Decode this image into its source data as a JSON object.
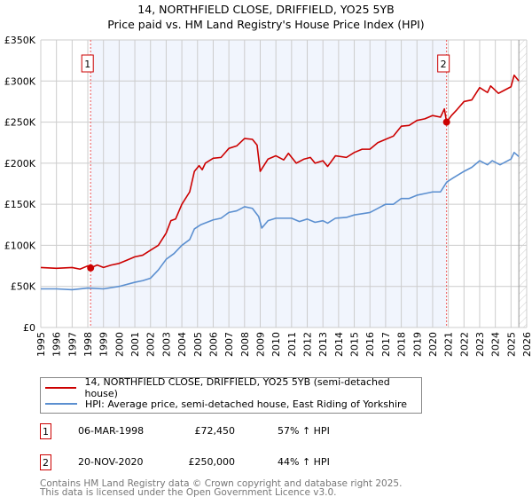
{
  "chart_data": {
    "type": "line",
    "title": "14, NORTHFIELD CLOSE, DRIFFIELD, YO25 5YB",
    "subtitle": "Price paid vs. HM Land Registry's House Price Index (HPI)",
    "xlim": [
      1995,
      2026
    ],
    "ylim": [
      0,
      350000
    ],
    "yticks": [
      {
        "v": 0,
        "label": "£0"
      },
      {
        "v": 50000,
        "label": "£50K"
      },
      {
        "v": 100000,
        "label": "£100K"
      },
      {
        "v": 150000,
        "label": "£150K"
      },
      {
        "v": 200000,
        "label": "£200K"
      },
      {
        "v": 250000,
        "label": "£250K"
      },
      {
        "v": 300000,
        "label": "£300K"
      },
      {
        "v": 350000,
        "label": "£350K"
      }
    ],
    "xticks": [
      "1995",
      "1996",
      "1997",
      "1998",
      "1999",
      "2000",
      "2001",
      "2002",
      "2003",
      "2004",
      "2005",
      "2006",
      "2007",
      "2008",
      "2009",
      "2010",
      "2011",
      "2012",
      "2013",
      "2014",
      "2015",
      "2016",
      "2017",
      "2018",
      "2019",
      "2020",
      "2021",
      "2022",
      "2023",
      "2024",
      "2025",
      "2026"
    ],
    "grid": true,
    "shaded_range": [
      1998.18,
      2020.89
    ],
    "forecast_start": 2025.5,
    "series": [
      {
        "name": "14, NORTHFIELD CLOSE, DRIFFIELD, YO25 5YB (semi-detached house)",
        "color": "#cc0000",
        "x": [
          1995,
          1996,
          1997,
          1997.5,
          1998,
          1998.18,
          1998.6,
          1999,
          1999.5,
          2000,
          2000.5,
          2001,
          2001.5,
          2002,
          2002.5,
          2003,
          2003.3,
          2003.6,
          2004,
          2004.5,
          2004.8,
          2005.1,
          2005.3,
          2005.5,
          2006,
          2006.5,
          2007,
          2007.5,
          2008,
          2008.5,
          2008.8,
          2009,
          2009.5,
          2010,
          2010.5,
          2010.8,
          2011.3,
          2011.8,
          2012.2,
          2012.5,
          2013,
          2013.3,
          2013.8,
          2014.5,
          2015,
          2015.5,
          2016,
          2016.5,
          2017,
          2017.5,
          2018,
          2018.5,
          2019,
          2019.5,
          2020,
          2020.5,
          2020.75,
          2020.89,
          2021.2,
          2021.5,
          2022,
          2022.5,
          2023,
          2023.5,
          2023.7,
          2024.2,
          2024.5,
          2025,
          2025.2,
          2025.5
        ],
        "y": [
          73000,
          72000,
          73000,
          71000,
          75000,
          72450,
          76000,
          73000,
          76000,
          78000,
          82000,
          86000,
          88000,
          94000,
          100000,
          115000,
          130000,
          132000,
          150000,
          165000,
          190000,
          197000,
          192000,
          200000,
          206000,
          207000,
          218000,
          221000,
          230000,
          229000,
          222000,
          190000,
          205000,
          209000,
          204000,
          212000,
          200000,
          205000,
          207000,
          200000,
          203000,
          196000,
          209000,
          207000,
          213000,
          217000,
          217000,
          225000,
          229000,
          233000,
          245000,
          246000,
          252000,
          254000,
          258000,
          256000,
          266000,
          250000,
          258000,
          264000,
          275000,
          277000,
          292000,
          286000,
          294000,
          285000,
          288000,
          293000,
          307000,
          300000
        ]
      },
      {
        "name": "HPI: Average price, semi-detached house, East Riding of Yorkshire",
        "color": "#5b8fd0",
        "x": [
          1995,
          1996,
          1997,
          1998,
          1999,
          2000,
          2001,
          2001.5,
          2002,
          2002.5,
          2003,
          2003.5,
          2004,
          2004.5,
          2004.8,
          2005.2,
          2006,
          2006.5,
          2007,
          2007.5,
          2008,
          2008.5,
          2008.9,
          2009.1,
          2009.5,
          2010,
          2010.5,
          2011,
          2011.5,
          2012,
          2012.5,
          2013,
          2013.3,
          2013.8,
          2014.5,
          2015,
          2016,
          2016.5,
          2017,
          2017.5,
          2018,
          2018.5,
          2019,
          2019.5,
          2020,
          2020.5,
          2020.9,
          2021.3,
          2022,
          2022.5,
          2023,
          2023.5,
          2023.8,
          2024.3,
          2025,
          2025.2,
          2025.5
        ],
        "y": [
          47000,
          47000,
          46000,
          48000,
          47000,
          50000,
          55000,
          57000,
          60000,
          70000,
          83000,
          90000,
          100000,
          107000,
          120000,
          125000,
          131000,
          133000,
          140000,
          142000,
          147000,
          145000,
          135000,
          121000,
          130000,
          133000,
          133000,
          133000,
          129000,
          132000,
          128000,
          130000,
          127000,
          133000,
          134000,
          137000,
          140000,
          145000,
          150000,
          150000,
          157000,
          157000,
          161000,
          163000,
          165000,
          165000,
          177000,
          182000,
          190000,
          195000,
          203000,
          198000,
          203000,
          198000,
          205000,
          213000,
          208000
        ]
      }
    ],
    "sales": [
      {
        "num": "1",
        "x": 1998.18,
        "y": 72450,
        "date": "06-MAR-1998",
        "price": "£72,450",
        "hpi": "57% ↑ HPI"
      },
      {
        "num": "2",
        "x": 2020.89,
        "y": 250000,
        "date": "20-NOV-2020",
        "price": "£250,000",
        "hpi": "44% ↑ HPI"
      }
    ]
  },
  "footer": {
    "line1": "Contains HM Land Registry data © Crown copyright and database right 2025.",
    "line2": "This data is licensed under the Open Government Licence v3.0."
  }
}
